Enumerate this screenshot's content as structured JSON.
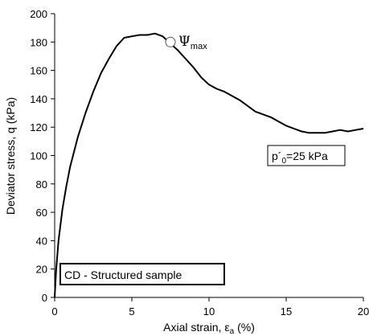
{
  "chart_data": {
    "type": "line",
    "title": "",
    "xlabel_main": "Axial strain, ε",
    "xlabel_sub": "a",
    "xlabel_unit": " (%)",
    "ylabel": "Deviator stress, q (kPa)",
    "xlim": [
      0,
      20
    ],
    "ylim": [
      0,
      200
    ],
    "xticks": [
      "0",
      "5",
      "10",
      "15",
      "20"
    ],
    "yticks": [
      "0",
      "20",
      "40",
      "60",
      "80",
      "100",
      "120",
      "140",
      "160",
      "180",
      "200"
    ],
    "grid": false,
    "series": [
      {
        "x": [
          0,
          0.1,
          0.25,
          0.5,
          0.75,
          1.0,
          1.5,
          2.0,
          2.5,
          3.0,
          3.5,
          4.0,
          4.5,
          5.0,
          5.5,
          6.0,
          6.5,
          7.0,
          7.3,
          7.6,
          8.0,
          8.5,
          9.0,
          9.5,
          10.0,
          10.5,
          11.0,
          11.5,
          12.0,
          12.5,
          13.0,
          13.5,
          14.0,
          14.5,
          15.0,
          15.5,
          16.0,
          16.5,
          17.0,
          17.5,
          18.0,
          18.5,
          19.0,
          19.5,
          20.0
        ],
        "y": [
          0,
          20,
          40,
          62,
          78,
          92,
          113,
          130,
          145,
          158,
          168,
          177,
          183,
          184,
          185,
          185,
          186,
          184,
          181,
          178,
          174,
          168,
          162,
          155,
          150,
          147,
          145,
          142,
          139,
          135,
          131,
          129,
          127,
          124,
          121,
          119,
          117,
          116,
          116,
          116,
          117,
          118,
          117,
          118,
          119
        ]
      }
    ],
    "marker": {
      "x": 7.5,
      "y": 180
    },
    "marker_label": "Ψ",
    "marker_label_sub": "max",
    "annotations": {
      "pressure_main": "p´",
      "pressure_sub": "0",
      "pressure_rest": "=25 kPa",
      "sample": "CD - Structured sample"
    }
  }
}
